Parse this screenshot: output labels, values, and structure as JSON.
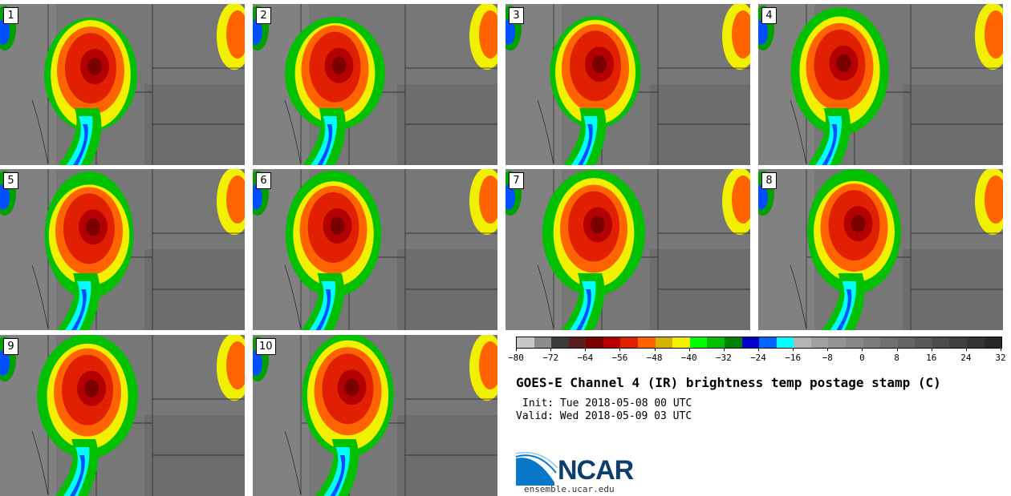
{
  "panels": [
    {
      "label": "1"
    },
    {
      "label": "2"
    },
    {
      "label": "3"
    },
    {
      "label": "4"
    },
    {
      "label": "5"
    },
    {
      "label": "6"
    },
    {
      "label": "7"
    },
    {
      "label": "8"
    },
    {
      "label": "9"
    },
    {
      "label": "10"
    }
  ],
  "colorbar": {
    "ticks": [
      "−80",
      "−72",
      "−64",
      "−56",
      "−48",
      "−40",
      "−32",
      "−24",
      "−16",
      "−8",
      "0",
      "8",
      "16",
      "24",
      "32"
    ],
    "colors": [
      "#c8c8c8",
      "#8c8c8c",
      "#3c3c3c",
      "#5a1e1e",
      "#7a0000",
      "#b40000",
      "#e02000",
      "#ff6400",
      "#d4b400",
      "#f0f000",
      "#00ff00",
      "#00c000",
      "#008000",
      "#0000c8",
      "#0064ff",
      "#00ffff",
      "#b4b4b4",
      "#a0a0a0",
      "#949494",
      "#888888",
      "#7c7c7c",
      "#707070",
      "#646464",
      "#585858",
      "#4c4c4c",
      "#404040",
      "#343434",
      "#282828"
    ]
  },
  "title": "GOES-E Channel 4 (IR) brightness temp postage stamp (C)",
  "init": "Init: Tue 2018-05-08 00 UTC",
  "valid": "Valid: Wed 2018-05-09 03 UTC",
  "logo": {
    "text": "NCAR",
    "url": "ensemble.ucar.edu"
  }
}
